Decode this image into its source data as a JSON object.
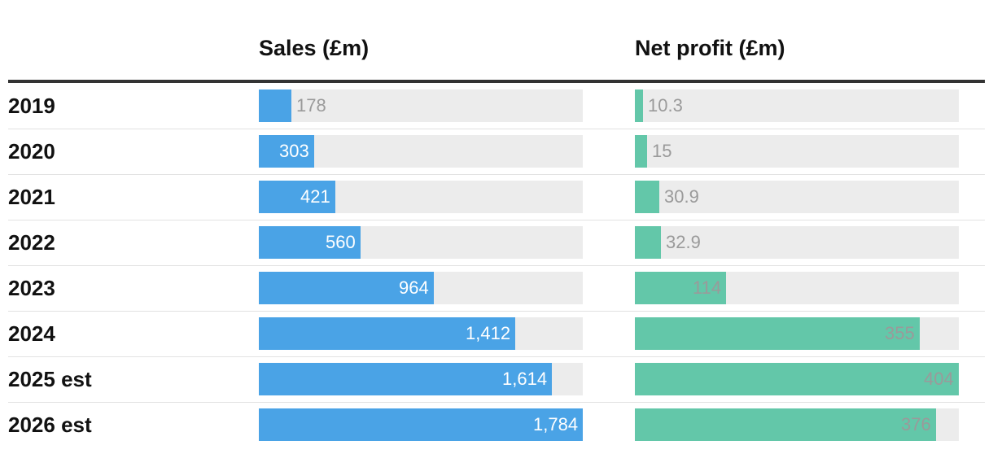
{
  "chart_data": {
    "type": "table",
    "columns": [
      "Sales (£m)",
      "Net profit (£m)"
    ],
    "categories": [
      "2019",
      "2020",
      "2021",
      "2022",
      "2023",
      "2024",
      "2025 est",
      "2026 est"
    ],
    "series": [
      {
        "name": "Sales (£m)",
        "values": [
          178,
          303,
          421,
          560,
          964,
          1412,
          1614,
          1784
        ],
        "labels": [
          "178",
          "303",
          "421",
          "560",
          "964",
          "1,412",
          "1,614",
          "1,784"
        ],
        "max": 1784,
        "color": "#4aa3e6",
        "inside_label_color": "#ffffff"
      },
      {
        "name": "Net profit (£m)",
        "values": [
          10.3,
          15,
          30.9,
          32.9,
          114,
          355,
          404,
          376
        ],
        "labels": [
          "10.3",
          "15",
          "30.9",
          "32.9",
          "114",
          "355",
          "404",
          "376"
        ],
        "max": 404,
        "color": "#63c7a9",
        "inside_label_color": "#9a9a9a"
      }
    ],
    "track_color": "#ececec",
    "outside_label_color": "#9a9a9a"
  }
}
